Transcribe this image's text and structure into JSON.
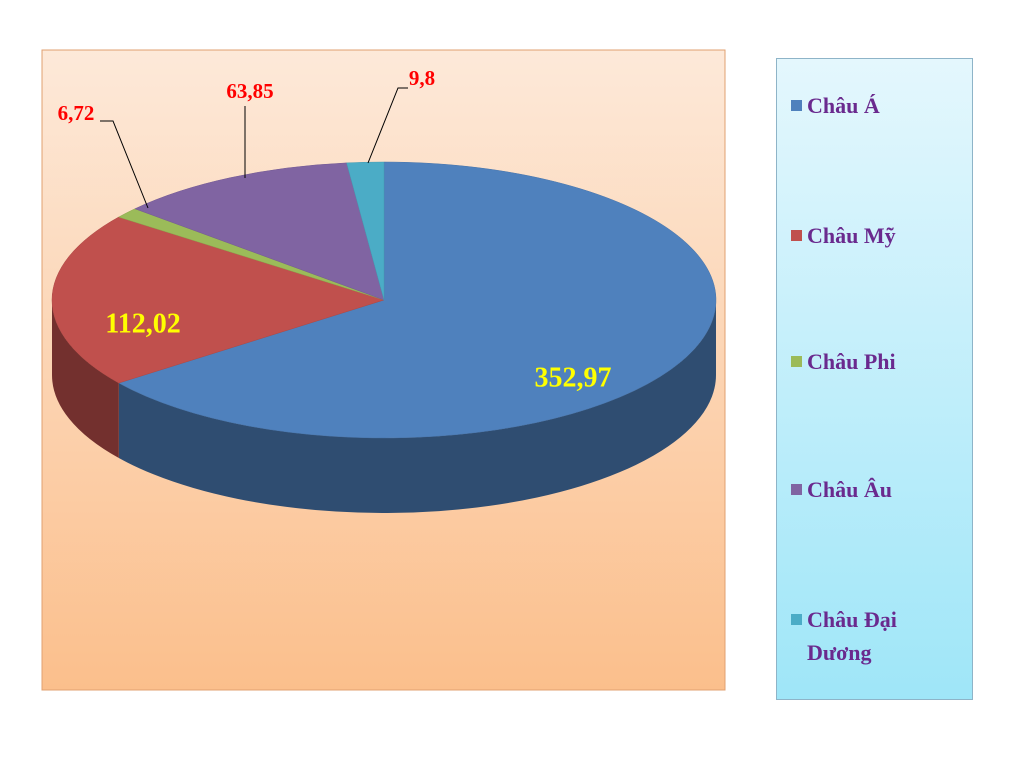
{
  "chart_data": {
    "type": "pie",
    "categories": [
      "Châu Á",
      "Châu Mỹ",
      "Châu Phi",
      "Châu Âu",
      "Châu Đại Dương"
    ],
    "values": [
      352.97,
      112.02,
      6.72,
      63.85,
      9.8
    ],
    "value_labels": [
      "352,97",
      "112,02",
      "6,72",
      "63,85",
      "9,8"
    ],
    "colors": [
      "#4f81bd",
      "#c0504d",
      "#9bbb59",
      "#8064a2",
      "#4bacc6"
    ],
    "legend": "right"
  }
}
